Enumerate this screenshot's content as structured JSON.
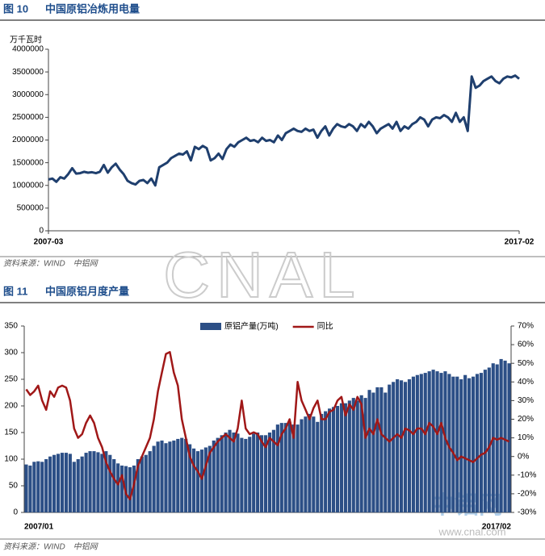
{
  "chart_data": [
    {
      "type": "line",
      "figure_label": "图 10",
      "title": "中国原铝冶炼用电量",
      "y_label": "万千瓦时",
      "source": "资料来源：WIND　中铝网",
      "color": "#1f3f6e",
      "categories": [
        "2007-03",
        null,
        null,
        null,
        null,
        null,
        null,
        null,
        null,
        null,
        null,
        null,
        null,
        null,
        null,
        null,
        null,
        null,
        null,
        null,
        null,
        null,
        null,
        null,
        null,
        null,
        null,
        null,
        null,
        null,
        null,
        null,
        null,
        null,
        null,
        null,
        null,
        null,
        null,
        null,
        null,
        null,
        null,
        null,
        null,
        null,
        null,
        null,
        null,
        null,
        null,
        null,
        null,
        null,
        null,
        null,
        null,
        null,
        null,
        null,
        null,
        null,
        null,
        null,
        null,
        null,
        null,
        null,
        null,
        null,
        null,
        null,
        null,
        null,
        null,
        null,
        null,
        null,
        null,
        null,
        null,
        null,
        null,
        null,
        null,
        null,
        null,
        null,
        null,
        null,
        null,
        null,
        null,
        null,
        null,
        null,
        null,
        null,
        null,
        null,
        null,
        null,
        null,
        null,
        null,
        null,
        null,
        null,
        null,
        null,
        null,
        null,
        null,
        null,
        null,
        null,
        null,
        null,
        null,
        "2017-02"
      ],
      "values": [
        1130000,
        1150000,
        1080000,
        1180000,
        1150000,
        1250000,
        1380000,
        1260000,
        1270000,
        1300000,
        1280000,
        1290000,
        1270000,
        1300000,
        1450000,
        1280000,
        1400000,
        1480000,
        1350000,
        1250000,
        1100000,
        1050000,
        1020000,
        1100000,
        1120000,
        1050000,
        1150000,
        1000000,
        1400000,
        1450000,
        1500000,
        1600000,
        1650000,
        1700000,
        1680000,
        1750000,
        1550000,
        1850000,
        1800000,
        1870000,
        1820000,
        1550000,
        1600000,
        1700000,
        1580000,
        1800000,
        1900000,
        1850000,
        1950000,
        2000000,
        2050000,
        1980000,
        2000000,
        1950000,
        2050000,
        1980000,
        2000000,
        1950000,
        2100000,
        2000000,
        2150000,
        2200000,
        2250000,
        2200000,
        2180000,
        2250000,
        2200000,
        2230000,
        2050000,
        2200000,
        2300000,
        2100000,
        2250000,
        2350000,
        2300000,
        2280000,
        2350000,
        2300000,
        2200000,
        2350000,
        2280000,
        2400000,
        2300000,
        2150000,
        2250000,
        2300000,
        2350000,
        2250000,
        2400000,
        2200000,
        2300000,
        2250000,
        2350000,
        2400000,
        2500000,
        2450000,
        2300000,
        2450000,
        2500000,
        2480000,
        2550000,
        2500000,
        2400000,
        2600000,
        2400000,
        2500000,
        2200000,
        3400000,
        3150000,
        3200000,
        3300000,
        3350000,
        3400000,
        3300000,
        3250000,
        3350000,
        3400000,
        3380000,
        3420000,
        3350000
      ],
      "ylim": [
        0,
        4000000
      ],
      "yticks": [
        0,
        500000,
        1000000,
        1500000,
        2000000,
        2500000,
        3000000,
        3500000,
        4000000
      ]
    },
    {
      "type": "combo",
      "figure_label": "图 11",
      "title": "中国原铝月度产量",
      "source": "资料来源：WIND　中铝网",
      "categories": [
        "2007/01",
        null,
        null,
        null,
        null,
        null,
        null,
        null,
        null,
        null,
        null,
        null,
        null,
        null,
        null,
        null,
        null,
        null,
        null,
        null,
        null,
        null,
        null,
        null,
        null,
        null,
        null,
        null,
        null,
        null,
        null,
        null,
        null,
        null,
        null,
        null,
        null,
        null,
        null,
        null,
        null,
        null,
        null,
        null,
        null,
        null,
        null,
        null,
        null,
        null,
        null,
        null,
        null,
        null,
        null,
        null,
        null,
        null,
        null,
        null,
        null,
        null,
        null,
        null,
        null,
        null,
        null,
        null,
        null,
        null,
        null,
        null,
        null,
        null,
        null,
        null,
        null,
        null,
        null,
        null,
        null,
        null,
        null,
        null,
        null,
        null,
        null,
        null,
        null,
        null,
        null,
        null,
        null,
        null,
        null,
        null,
        null,
        null,
        null,
        null,
        null,
        null,
        null,
        null,
        null,
        null,
        null,
        null,
        null,
        null,
        null,
        null,
        null,
        null,
        null,
        null,
        null,
        null,
        null,
        null,
        null,
        "2017/02"
      ],
      "series": [
        {
          "name": "原铝产量(万吨)",
          "type": "bar",
          "color": "#2c4f86",
          "values": [
            90,
            88,
            95,
            96,
            95,
            100,
            105,
            108,
            110,
            112,
            112,
            110,
            95,
            100,
            105,
            112,
            115,
            115,
            113,
            110,
            115,
            108,
            100,
            92,
            88,
            87,
            85,
            88,
            100,
            105,
            108,
            115,
            125,
            133,
            135,
            130,
            133,
            135,
            138,
            140,
            138,
            128,
            120,
            115,
            118,
            122,
            125,
            135,
            140,
            145,
            150,
            155,
            150,
            148,
            140,
            138,
            142,
            148,
            150,
            145,
            145,
            150,
            155,
            165,
            168,
            168,
            170,
            165,
            165,
            175,
            180,
            185,
            180,
            170,
            185,
            190,
            195,
            198,
            200,
            205,
            205,
            210,
            215,
            210,
            220,
            215,
            230,
            225,
            235,
            235,
            225,
            240,
            245,
            250,
            248,
            245,
            250,
            255,
            258,
            260,
            262,
            265,
            268,
            265,
            262,
            265,
            260,
            255,
            255,
            250,
            258,
            252,
            255,
            260,
            262,
            268,
            272,
            280,
            278,
            288,
            285,
            280
          ]
        },
        {
          "name": "同比",
          "type": "line",
          "axis": "y2",
          "color": "#a01818",
          "values": [
            36,
            33,
            35,
            38,
            30,
            25,
            35,
            32,
            37,
            38,
            37,
            30,
            15,
            10,
            12,
            18,
            22,
            18,
            10,
            5,
            -3,
            -8,
            -12,
            -15,
            -10,
            -20,
            -23,
            -15,
            -5,
            0,
            5,
            10,
            20,
            35,
            45,
            55,
            56,
            45,
            38,
            20,
            10,
            0,
            -5,
            -8,
            -12,
            -5,
            2,
            5,
            8,
            10,
            12,
            10,
            8,
            15,
            30,
            15,
            12,
            13,
            12,
            8,
            5,
            10,
            8,
            6,
            12,
            15,
            20,
            10,
            40,
            30,
            25,
            20,
            26,
            30,
            20,
            20,
            24,
            25,
            30,
            32,
            22,
            28,
            25,
            32,
            28,
            10,
            15,
            12,
            20,
            12,
            10,
            8,
            10,
            12,
            10,
            15,
            14,
            12,
            15,
            15,
            12,
            18,
            16,
            12,
            18,
            10,
            5,
            2,
            -2,
            0,
            -1,
            -2,
            -3,
            -1,
            1,
            2,
            5,
            10,
            9,
            10,
            9,
            8
          ]
        }
      ],
      "ylim": [
        0,
        350
      ],
      "yticks": [
        0,
        50,
        100,
        150,
        200,
        250,
        300,
        350
      ],
      "y2lim": [
        -30,
        70
      ],
      "y2ticks": [
        {
          "value": -30,
          "label": "-30%"
        },
        {
          "value": -20,
          "label": "-20%"
        },
        {
          "value": -10,
          "label": "-10%"
        },
        {
          "value": 0,
          "label": "0%"
        },
        {
          "value": 10,
          "label": "10%"
        },
        {
          "value": 20,
          "label": "20%"
        },
        {
          "value": 30,
          "label": "30%"
        },
        {
          "value": 40,
          "label": "40%"
        },
        {
          "value": 50,
          "label": "50%"
        },
        {
          "value": 60,
          "label": "60%"
        },
        {
          "value": 70,
          "label": "70%"
        }
      ],
      "legend": "top"
    }
  ],
  "watermark": {
    "text": "CNAL",
    "logo": "中铝网",
    "url": "www.cnal.com"
  }
}
